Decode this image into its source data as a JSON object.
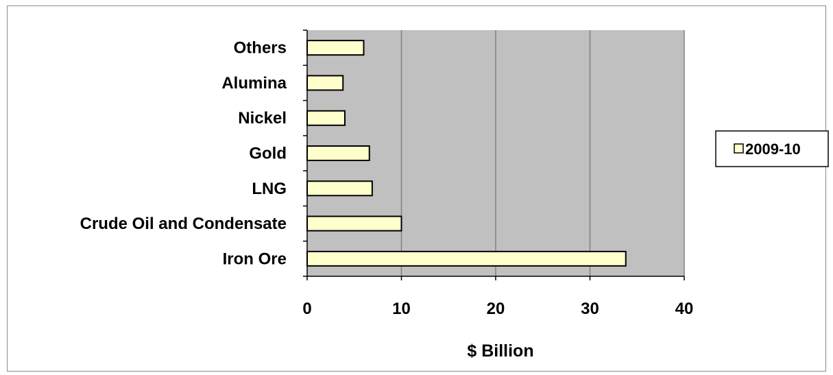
{
  "chart_data": {
    "type": "bar",
    "orientation": "horizontal",
    "categories": [
      "Iron Ore",
      "Crude Oil and Condensate",
      "LNG",
      "Gold",
      "Nickel",
      "Alumina",
      "Others"
    ],
    "series": [
      {
        "name": "2009-10",
        "values": [
          33.8,
          10.0,
          6.9,
          6.6,
          4.0,
          3.8,
          6.0
        ]
      }
    ],
    "xlabel": "$ Billion",
    "ylabel": "",
    "xlim": [
      0,
      40
    ],
    "xticks": [
      "0",
      "10",
      "20",
      "30",
      "40"
    ],
    "grid": "vertical",
    "legend_position": "right",
    "colors": {
      "bar_fill": "#ffffcc",
      "bar_stroke": "#000000",
      "plot_background": "#c0c0c0",
      "gridline": "#808080"
    }
  }
}
